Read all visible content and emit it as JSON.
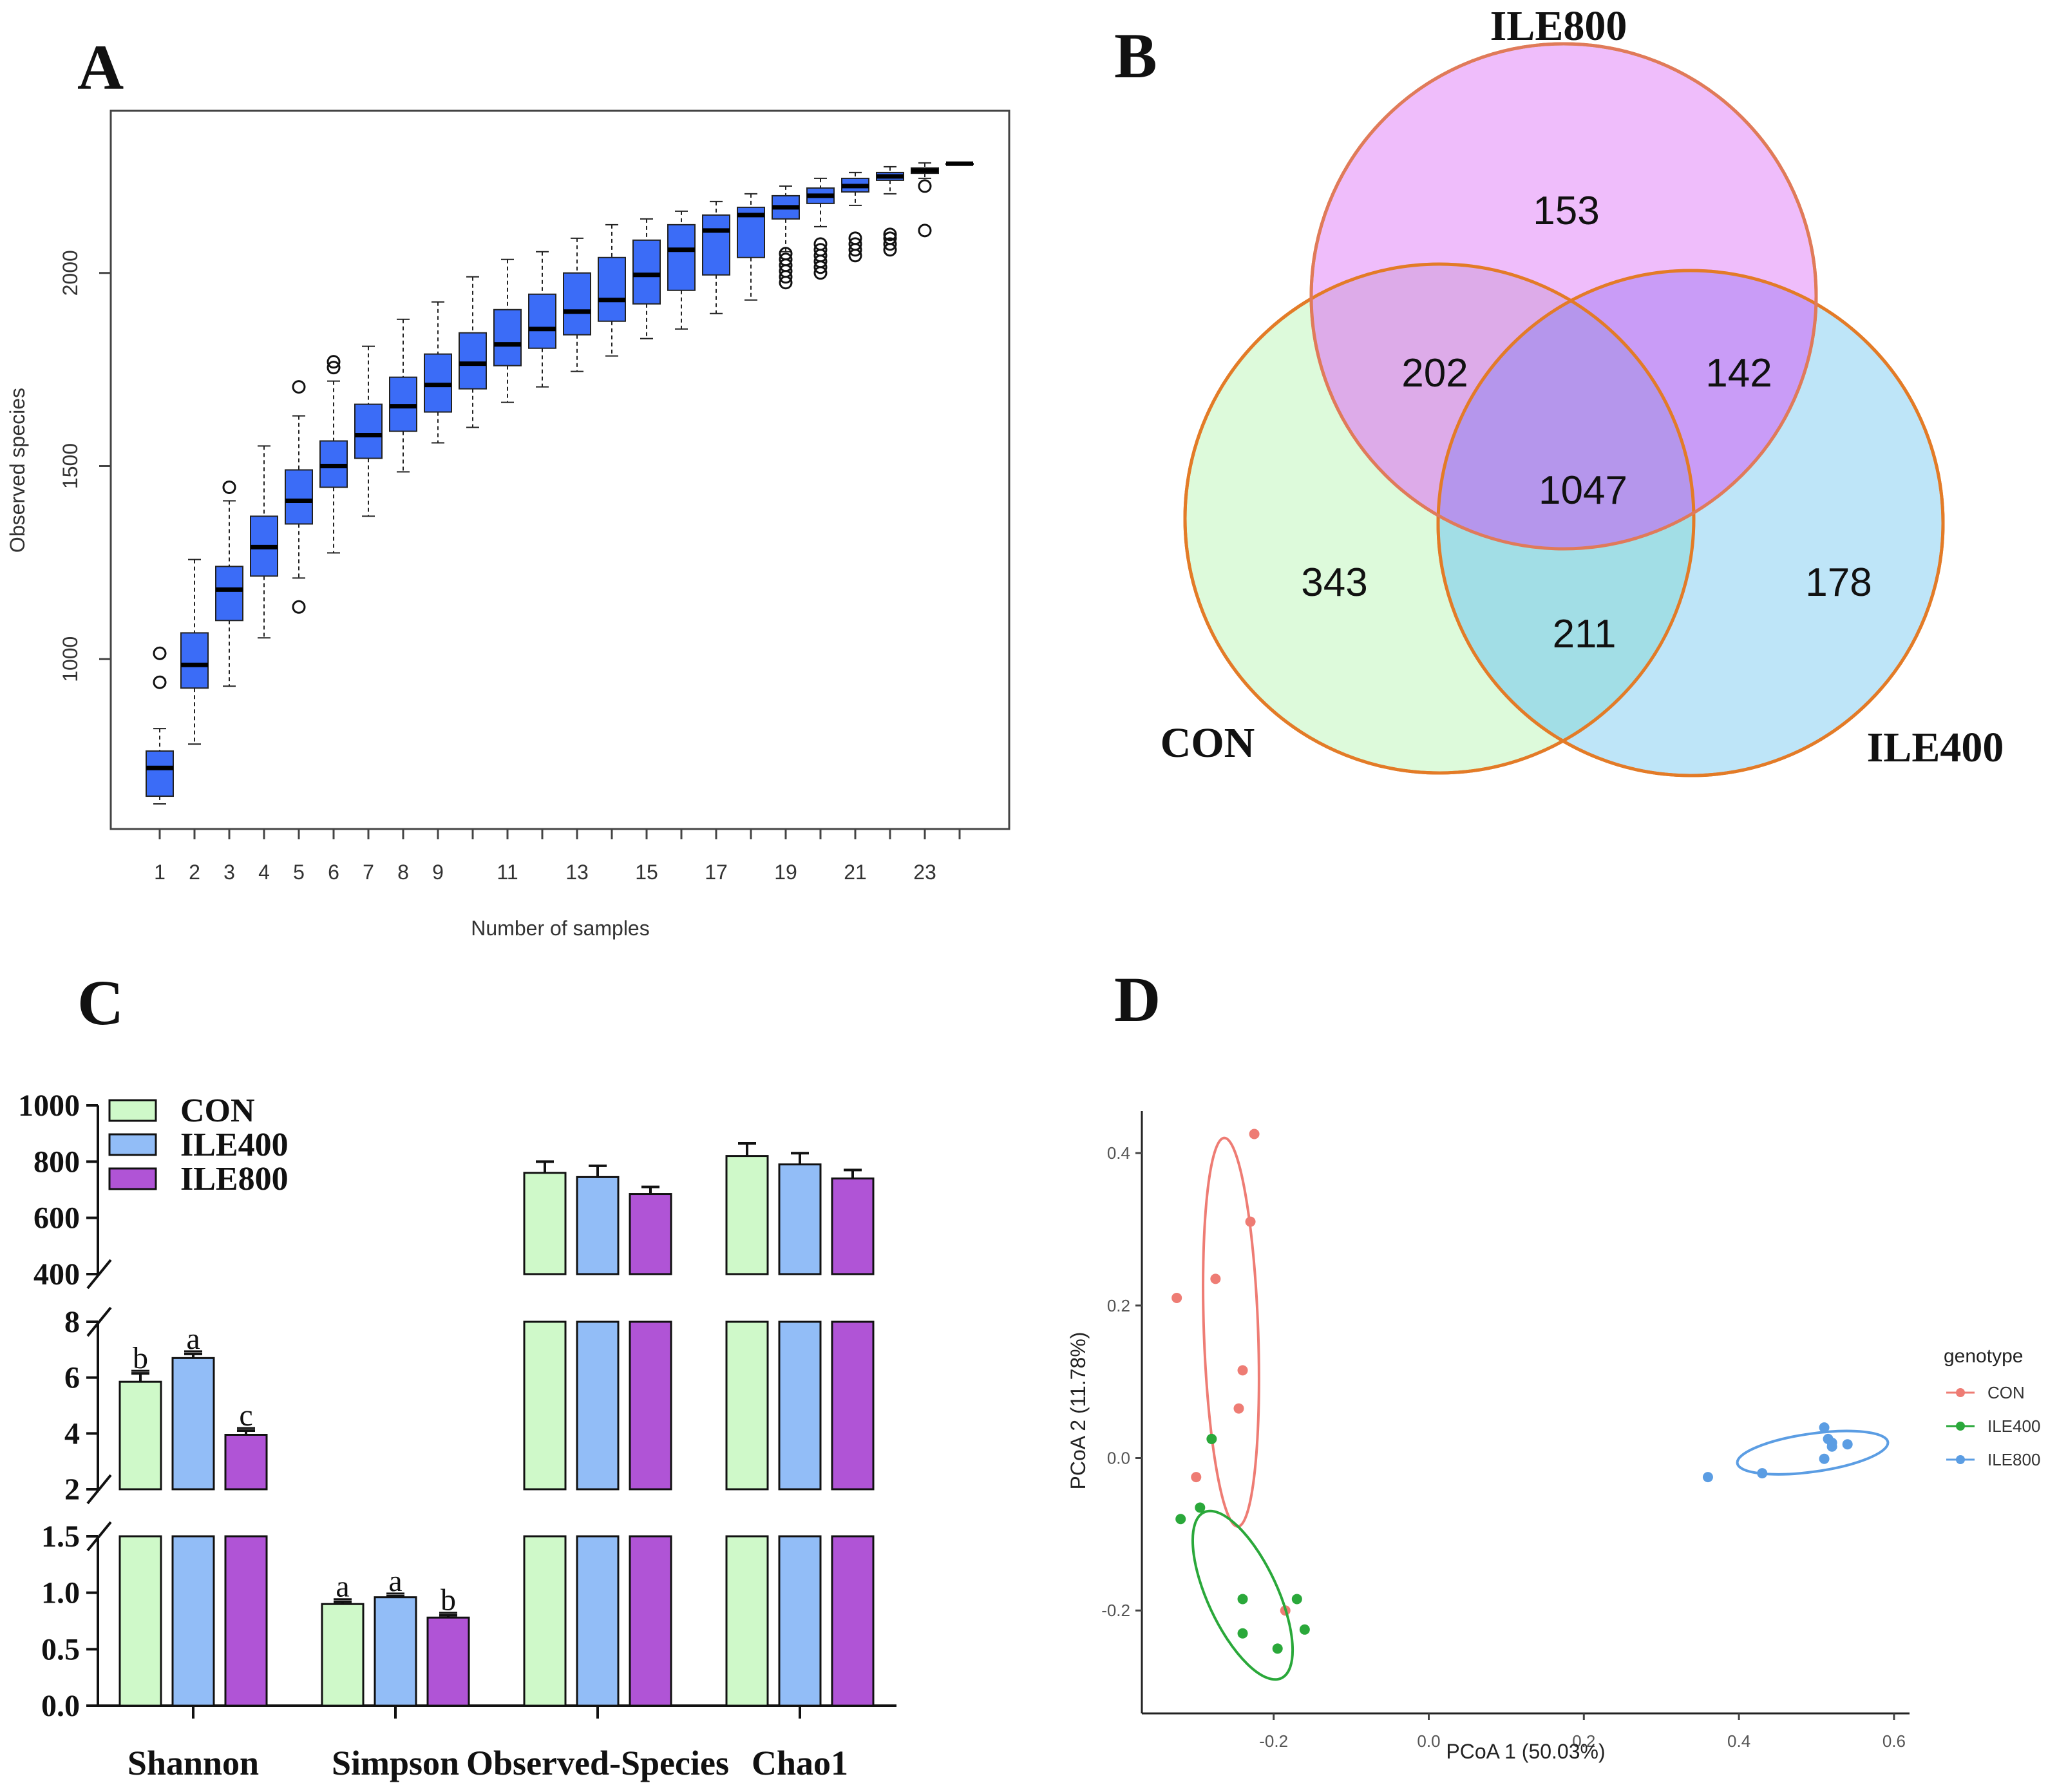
{
  "panels": {
    "A": {
      "label": "A"
    },
    "B": {
      "label": "B"
    },
    "C": {
      "label": "C"
    },
    "D": {
      "label": "D"
    }
  },
  "chart_data": [
    {
      "panel": "A",
      "type": "box",
      "title": "",
      "xlabel": "Number of samples",
      "ylabel": "Observed species",
      "ylim": [
        560,
        2420
      ],
      "yticks": [
        1000,
        1500,
        2000
      ],
      "xticks": [
        "1",
        "2",
        "3",
        "4",
        "5",
        "6",
        "7",
        "8",
        "9",
        "11",
        "13",
        "15",
        "17",
        "19",
        "21",
        "23"
      ],
      "color": "#3b6cf7",
      "boxes": [
        {
          "n": 1,
          "whisker_low": 625,
          "q1": 645,
          "median": 718,
          "q3": 762,
          "whisker_high": 820,
          "outliers": [
            940,
            1015
          ]
        },
        {
          "n": 2,
          "whisker_low": 780,
          "q1": 925,
          "median": 985,
          "q3": 1068,
          "whisker_high": 1258,
          "outliers": []
        },
        {
          "n": 3,
          "whisker_low": 930,
          "q1": 1100,
          "median": 1180,
          "q3": 1240,
          "whisker_high": 1410,
          "outliers": [
            1445
          ]
        },
        {
          "n": 4,
          "whisker_low": 1055,
          "q1": 1215,
          "median": 1290,
          "q3": 1370,
          "whisker_high": 1552,
          "outliers": []
        },
        {
          "n": 5,
          "whisker_low": 1210,
          "q1": 1350,
          "median": 1410,
          "q3": 1490,
          "whisker_high": 1630,
          "outliers": [
            1135,
            1705
          ]
        },
        {
          "n": 6,
          "whisker_low": 1275,
          "q1": 1445,
          "median": 1500,
          "q3": 1565,
          "whisker_high": 1720,
          "outliers": [
            1755,
            1770
          ]
        },
        {
          "n": 7,
          "whisker_low": 1370,
          "q1": 1520,
          "median": 1580,
          "q3": 1660,
          "whisker_high": 1810,
          "outliers": []
        },
        {
          "n": 8,
          "whisker_low": 1485,
          "q1": 1590,
          "median": 1655,
          "q3": 1730,
          "whisker_high": 1880,
          "outliers": []
        },
        {
          "n": 9,
          "whisker_low": 1560,
          "q1": 1640,
          "median": 1710,
          "q3": 1790,
          "whisker_high": 1925,
          "outliers": []
        },
        {
          "n": 10,
          "whisker_low": 1600,
          "q1": 1700,
          "median": 1765,
          "q3": 1845,
          "whisker_high": 1990,
          "outliers": []
        },
        {
          "n": 11,
          "whisker_low": 1665,
          "q1": 1760,
          "median": 1815,
          "q3": 1905,
          "whisker_high": 2035,
          "outliers": []
        },
        {
          "n": 12,
          "whisker_low": 1705,
          "q1": 1805,
          "median": 1855,
          "q3": 1945,
          "whisker_high": 2055,
          "outliers": []
        },
        {
          "n": 13,
          "whisker_low": 1745,
          "q1": 1840,
          "median": 1900,
          "q3": 2000,
          "whisker_high": 2090,
          "outliers": []
        },
        {
          "n": 14,
          "whisker_low": 1785,
          "q1": 1875,
          "median": 1930,
          "q3": 2040,
          "whisker_high": 2125,
          "outliers": []
        },
        {
          "n": 15,
          "whisker_low": 1830,
          "q1": 1920,
          "median": 1995,
          "q3": 2085,
          "whisker_high": 2140,
          "outliers": []
        },
        {
          "n": 16,
          "whisker_low": 1855,
          "q1": 1955,
          "median": 2060,
          "q3": 2125,
          "whisker_high": 2160,
          "outliers": []
        },
        {
          "n": 17,
          "whisker_low": 1895,
          "q1": 1995,
          "median": 2110,
          "q3": 2150,
          "whisker_high": 2185,
          "outliers": []
        },
        {
          "n": 18,
          "whisker_low": 1930,
          "q1": 2040,
          "median": 2150,
          "q3": 2170,
          "whisker_high": 2205,
          "outliers": []
        },
        {
          "n": 19,
          "whisker_low": 2055,
          "q1": 2140,
          "median": 2170,
          "q3": 2200,
          "whisker_high": 2225,
          "outliers": [
            1975,
            1990,
            2005,
            2020,
            2035,
            2050
          ]
        },
        {
          "n": 20,
          "whisker_low": 2120,
          "q1": 2180,
          "median": 2200,
          "q3": 2220,
          "whisker_high": 2245,
          "outliers": [
            2000,
            2015,
            2030,
            2045,
            2060,
            2075
          ]
        },
        {
          "n": 21,
          "whisker_low": 2175,
          "q1": 2210,
          "median": 2225,
          "q3": 2245,
          "whisker_high": 2260,
          "outliers": [
            2045,
            2060,
            2075,
            2090
          ]
        },
        {
          "n": 22,
          "whisker_low": 2205,
          "q1": 2240,
          "median": 2250,
          "q3": 2260,
          "whisker_high": 2275,
          "outliers": [
            2060,
            2075,
            2090,
            2100
          ]
        },
        {
          "n": 23,
          "whisker_low": 2245,
          "q1": 2258,
          "median": 2265,
          "q3": 2272,
          "whisker_high": 2285,
          "outliers": [
            2110,
            2225
          ]
        },
        {
          "n": 24,
          "whisker_low": 2283,
          "q1": 2283,
          "median": 2283,
          "q3": 2283,
          "whisker_high": 2283,
          "outliers": []
        }
      ]
    },
    {
      "panel": "B",
      "type": "venn",
      "sets": [
        "ILE800",
        "CON",
        "ILE400"
      ],
      "regions": {
        "ILE800_only": "153",
        "CON_only": "343",
        "ILE400_only": "178",
        "CON_ILE800": "202",
        "ILE800_ILE400": "142",
        "CON_ILE400": "211",
        "all": "1047"
      },
      "colors": {
        "ILE800": "#e9a3f9",
        "CON": "#ddfadb",
        "ILE400": "#b3e0f7"
      }
    },
    {
      "panel": "C",
      "type": "bar",
      "categories": [
        "Shannon",
        "Simpson",
        "Observed-Species",
        "Chao1"
      ],
      "series": [
        {
          "name": "CON",
          "color": "#cff9c9",
          "values": [
            5.85,
            0.9,
            760,
            820
          ],
          "errors": [
            0.3,
            0.02,
            40,
            45
          ],
          "letters": [
            "b",
            "a",
            "",
            ""
          ]
        },
        {
          "name": "ILE400",
          "color": "#92bdf7",
          "values": [
            6.7,
            0.96,
            745,
            790
          ],
          "errors": [
            0.15,
            0.01,
            40,
            40
          ],
          "letters": [
            "a",
            "a",
            "",
            ""
          ]
        },
        {
          "name": "ILE800",
          "color": "#b054d6",
          "values": [
            3.95,
            0.78,
            685,
            740
          ],
          "errors": [
            0.15,
            0.02,
            25,
            30
          ],
          "letters": [
            "c",
            "b",
            "",
            ""
          ]
        }
      ],
      "axis_segments": [
        {
          "ylim": [
            0,
            1.5
          ],
          "ticks": [
            "0.0",
            "0.5",
            "1.0",
            "1.5"
          ]
        },
        {
          "ylim": [
            2,
            8
          ],
          "ticks": [
            "2",
            "4",
            "6",
            "8"
          ]
        },
        {
          "ylim": [
            400,
            1000
          ],
          "ticks": [
            "400",
            "600",
            "800",
            "1000"
          ]
        }
      ]
    },
    {
      "panel": "D",
      "type": "scatter",
      "xlabel": "PCoA 1 (50.03%)",
      "ylabel": "PCoA 2 (11.78%)",
      "xlim": [
        -0.37,
        0.62
      ],
      "ylim": [
        -0.335,
        0.455
      ],
      "xticks": [
        "-0.2",
        "0.0",
        "0.2",
        "0.4",
        "0.6"
      ],
      "yticks": [
        "-0.2",
        "0.0",
        "0.2",
        "0.4"
      ],
      "legend_title": "genotype",
      "series": [
        {
          "name": "CON",
          "color": "#ee7c74",
          "points": [
            [
              -0.225,
              0.425
            ],
            [
              -0.23,
              0.31
            ],
            [
              -0.275,
              0.235
            ],
            [
              -0.325,
              0.21
            ],
            [
              -0.24,
              0.115
            ],
            [
              -0.245,
              0.065
            ],
            [
              -0.3,
              -0.025
            ],
            [
              -0.185,
              -0.2
            ]
          ],
          "ellipse": {
            "cx": -0.255,
            "cy": 0.165,
            "rx": 0.035,
            "ry": 0.255,
            "angle": -2
          }
        },
        {
          "name": "ILE400",
          "color": "#2aa83a",
          "points": [
            [
              -0.28,
              0.025
            ],
            [
              -0.295,
              -0.065
            ],
            [
              -0.32,
              -0.08
            ],
            [
              -0.24,
              -0.185
            ],
            [
              -0.17,
              -0.185
            ],
            [
              -0.16,
              -0.225
            ],
            [
              -0.24,
              -0.23
            ],
            [
              -0.195,
              -0.25
            ]
          ],
          "ellipse": {
            "cx": -0.24,
            "cy": -0.18,
            "rx": 0.045,
            "ry": 0.12,
            "angle": -25
          }
        },
        {
          "name": "ILE800",
          "color": "#5b9de3",
          "points": [
            [
              0.36,
              -0.025
            ],
            [
              0.43,
              -0.02
            ],
            [
              0.51,
              0.04
            ],
            [
              0.515,
              0.025
            ],
            [
              0.52,
              0.015
            ],
            [
              0.52,
              0.02
            ],
            [
              0.54,
              0.018
            ],
            [
              0.51,
              -0.001
            ]
          ],
          "ellipse": {
            "cx": 0.495,
            "cy": 0.007,
            "rx": 0.098,
            "ry": 0.025,
            "angle": -8
          }
        }
      ]
    }
  ]
}
